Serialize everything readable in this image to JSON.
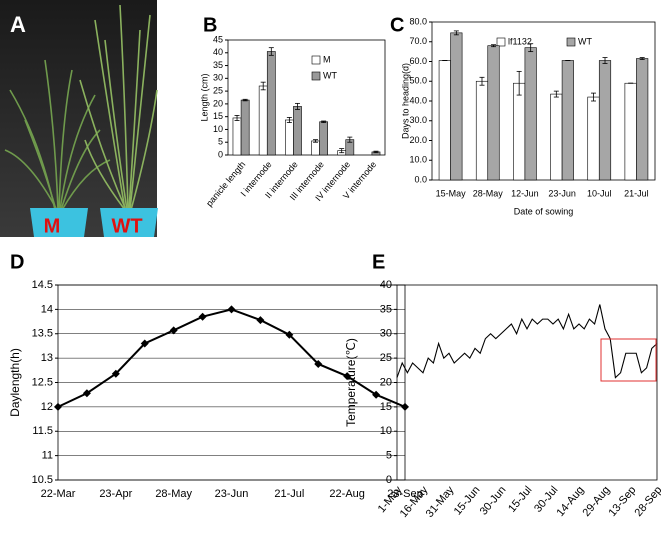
{
  "photo": {
    "panel_label": "A",
    "labels": [
      "M",
      "WT"
    ]
  },
  "chart_data": [
    {
      "type": "bar",
      "panel_label": "B",
      "y_label": "Length (cm)",
      "categories": [
        "panicle length",
        "I internode",
        "II internode",
        "III internode",
        "IV internode",
        "V internode"
      ],
      "series": [
        {
          "name": "M",
          "color": "#ffffff",
          "values": [
            14.5,
            27,
            13.7,
            5.5,
            1.7,
            null
          ],
          "errors": [
            1,
            1.5,
            1,
            0.5,
            0.8,
            null
          ]
        },
        {
          "name": "WT",
          "color": "#999999",
          "values": [
            21.5,
            40.5,
            19,
            13,
            6,
            1.2
          ],
          "errors": [
            0.3,
            1.5,
            1.2,
            0.3,
            1,
            0.3
          ]
        }
      ],
      "ylim": [
        0,
        45
      ],
      "yticks": [
        0,
        5,
        10,
        15,
        20,
        25,
        30,
        35,
        40,
        45
      ],
      "grid": false
    },
    {
      "type": "bar",
      "panel_label": "C",
      "y_label": "Days to heading(d)",
      "x_label": "Date of sowing",
      "categories": [
        "15-May",
        "28-May",
        "12-Jun",
        "23-Jun",
        "10-Jul",
        "21-Jul"
      ],
      "series": [
        {
          "name": "lf1132",
          "color": "#ffffff",
          "values": [
            60.5,
            50,
            49,
            43.5,
            42,
            49
          ],
          "errors": [
            0,
            2,
            6,
            1.5,
            2,
            0
          ]
        },
        {
          "name": "WT",
          "color": "#a6a6a6",
          "values": [
            74.5,
            68,
            67,
            60.5,
            60.5,
            61.5
          ],
          "errors": [
            1,
            0.5,
            2,
            0,
            1.5,
            0.5
          ]
        }
      ],
      "ylim": [
        0,
        80
      ],
      "yticks": [
        {
          "value": 0,
          "label": "0.0"
        },
        {
          "value": 10,
          "label": "10.0"
        },
        {
          "value": 20,
          "label": "20.0"
        },
        {
          "value": 30,
          "label": "30.0"
        },
        {
          "value": 40,
          "label": "40.0"
        },
        {
          "value": 50,
          "label": "50.0"
        },
        {
          "value": 60,
          "label": "60.0"
        },
        {
          "value": 70,
          "label": "70.0"
        },
        {
          "value": 80,
          "label": "80.0"
        }
      ],
      "grid": false
    },
    {
      "type": "line",
      "panel_label": "D",
      "y_label": "Daylength(h)",
      "markers": true,
      "categories": [
        "22-Mar",
        null,
        "23-Apr",
        null,
        "28-May",
        null,
        "23-Jun",
        null,
        "21-Jul",
        null,
        "22-Aug",
        null,
        "23-Sep"
      ],
      "series": [
        {
          "name": "Daylength",
          "color": "#000000",
          "values": [
            12,
            12.28,
            12.68,
            13.3,
            13.57,
            13.85,
            14.0,
            13.78,
            13.48,
            12.88,
            12.63,
            12.25,
            12.0
          ]
        }
      ],
      "ylim": [
        10.5,
        14.5
      ],
      "yticks": [
        10.5,
        11,
        11.5,
        12,
        12.5,
        13,
        13.5,
        14,
        14.5
      ],
      "grid": true
    },
    {
      "type": "line",
      "panel_label": "E",
      "y_label": "Temperature(℃)",
      "markers": false,
      "categories": [
        "1-May",
        null,
        null,
        null,
        null,
        "16-May",
        null,
        null,
        null,
        null,
        "31-May",
        null,
        null,
        null,
        null,
        "15-Jun",
        null,
        null,
        null,
        null,
        "30-Jun",
        null,
        null,
        null,
        null,
        "15-Jul",
        null,
        null,
        null,
        null,
        "30-Jul",
        null,
        null,
        null,
        null,
        "14-Aug",
        null,
        null,
        null,
        null,
        "29-Aug",
        null,
        null,
        null,
        null,
        "13-Sep",
        null,
        null,
        null,
        null,
        "28-Sep"
      ],
      "series": [
        {
          "name": "Temperature",
          "color": "#000000",
          "values": [
            21,
            24,
            22,
            24,
            23,
            22,
            25,
            24,
            28,
            25,
            26,
            24,
            25,
            26,
            25,
            27,
            26,
            29,
            30,
            29,
            30,
            31,
            32,
            30,
            33,
            31,
            33,
            32,
            33,
            33,
            32,
            33,
            31,
            34,
            31,
            32,
            31,
            33,
            32,
            36,
            31,
            29,
            21,
            22,
            26,
            26,
            26,
            22,
            23,
            27,
            28
          ]
        }
      ],
      "ylim": [
        0,
        40
      ],
      "yticks": [
        0,
        5,
        10,
        15,
        20,
        25,
        30,
        35,
        40
      ],
      "grid": false
    }
  ]
}
